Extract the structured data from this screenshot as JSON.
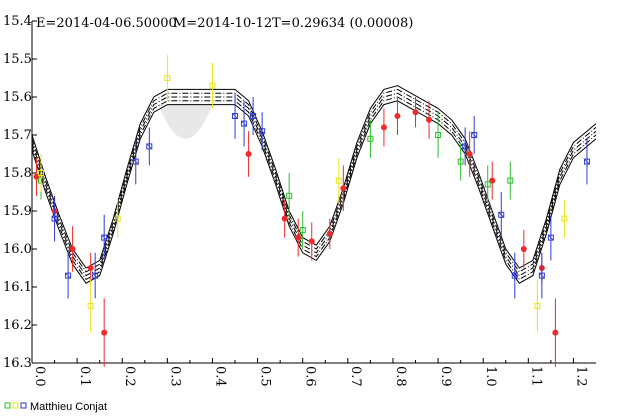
{
  "header": {
    "epoch": "E=2014-04-06.50000",
    "max": "M=2014-10-12",
    "period": "T=0.29634 (0.00008)"
  },
  "legend": {
    "observer": "Matthieu Conjat"
  },
  "colors": {
    "red": "#ee2a2a",
    "blue": "#2e3ad6",
    "green": "#2ebd2e",
    "yellow": "#e6e61a",
    "curve": "#000000"
  },
  "chart_data": {
    "type": "scatter",
    "title": "",
    "xlabel": "",
    "ylabel": "",
    "xlim": [
      0.0,
      1.25
    ],
    "ylim": [
      16.3,
      15.4
    ],
    "y_inverted": true,
    "x_ticks": [
      "0.0",
      "0.1",
      "0.2",
      "0.3",
      "0.4",
      "0.5",
      "0.6",
      "0.7",
      "0.8",
      "0.9",
      "1.0",
      "1.1",
      "1.2"
    ],
    "y_ticks": [
      "15.4",
      "15.5",
      "15.6",
      "15.7",
      "15.8",
      "15.9",
      "16.0",
      "16.1",
      "16.2",
      "16.3"
    ],
    "fit_curve": {
      "x": [
        0.0,
        0.03,
        0.06,
        0.09,
        0.12,
        0.15,
        0.18,
        0.21,
        0.24,
        0.27,
        0.3,
        0.33,
        0.36,
        0.39,
        0.42,
        0.45,
        0.48,
        0.51,
        0.54,
        0.57,
        0.6,
        0.63,
        0.66,
        0.69,
        0.72,
        0.75,
        0.78,
        0.81,
        0.84,
        0.87,
        0.9,
        0.93,
        0.96,
        0.99,
        1.02,
        1.05,
        1.08,
        1.11,
        1.14,
        1.17,
        1.2,
        1.23,
        1.25
      ],
      "mag": [
        15.72,
        15.83,
        15.93,
        16.02,
        16.07,
        16.05,
        15.94,
        15.81,
        15.69,
        15.62,
        15.6,
        15.6,
        15.6,
        15.6,
        15.6,
        15.6,
        15.63,
        15.71,
        15.81,
        15.92,
        15.99,
        16.01,
        15.96,
        15.86,
        15.74,
        15.65,
        15.6,
        15.59,
        15.61,
        15.63,
        15.65,
        15.68,
        15.73,
        15.82,
        15.92,
        16.02,
        16.07,
        16.05,
        15.94,
        15.81,
        15.74,
        15.71,
        15.69
      ],
      "band_offsets": [
        -0.02,
        -0.01,
        0.0,
        0.01,
        0.02
      ],
      "band_styles": [
        "solid",
        "dashdot",
        "dashdot",
        "dashdot",
        "solid"
      ]
    },
    "series": [
      {
        "name": "Matthieu Conjat",
        "marker": "circle",
        "color": "red",
        "points": [
          {
            "x": 0.01,
            "y": 15.81,
            "err": 0.05
          },
          {
            "x": 0.05,
            "y": 15.9,
            "err": 0.04
          },
          {
            "x": 0.09,
            "y": 16.0,
            "err": 0.06
          },
          {
            "x": 0.13,
            "y": 16.05,
            "err": 0.04
          },
          {
            "x": 0.16,
            "y": 16.22,
            "err": 0.09
          },
          {
            "x": 0.48,
            "y": 15.75,
            "err": 0.06
          },
          {
            "x": 0.56,
            "y": 15.92,
            "err": 0.05
          },
          {
            "x": 0.59,
            "y": 15.97,
            "err": 0.05
          },
          {
            "x": 0.62,
            "y": 15.98,
            "err": 0.05
          },
          {
            "x": 0.66,
            "y": 15.96,
            "err": 0.04
          },
          {
            "x": 0.69,
            "y": 15.84,
            "err": 0.06
          },
          {
            "x": 0.78,
            "y": 15.68,
            "err": 0.05
          },
          {
            "x": 0.81,
            "y": 15.65,
            "err": 0.05
          },
          {
            "x": 0.85,
            "y": 15.64,
            "err": 0.04
          },
          {
            "x": 0.88,
            "y": 15.66,
            "err": 0.05
          },
          {
            "x": 0.97,
            "y": 15.75,
            "err": 0.06
          },
          {
            "x": 1.02,
            "y": 15.82,
            "err": 0.05
          },
          {
            "x": 1.09,
            "y": 16.0,
            "err": 0.05
          },
          {
            "x": 1.13,
            "y": 16.05,
            "err": 0.04
          },
          {
            "x": 1.16,
            "y": 16.22,
            "err": 0.09
          }
        ]
      },
      {
        "name": "",
        "marker": "square-x",
        "color": "blue",
        "points": [
          {
            "x": 0.05,
            "y": 15.92,
            "err": 0.06
          },
          {
            "x": 0.08,
            "y": 16.07,
            "err": 0.06
          },
          {
            "x": 0.14,
            "y": 16.07,
            "err": 0.06
          },
          {
            "x": 0.16,
            "y": 15.97,
            "err": 0.06
          },
          {
            "x": 0.23,
            "y": 15.77,
            "err": 0.06
          },
          {
            "x": 0.26,
            "y": 15.73,
            "err": 0.05
          },
          {
            "x": 0.45,
            "y": 15.65,
            "err": 0.06
          },
          {
            "x": 0.47,
            "y": 15.67,
            "err": 0.06
          },
          {
            "x": 0.49,
            "y": 15.65,
            "err": 0.05
          },
          {
            "x": 0.51,
            "y": 15.69,
            "err": 0.05
          },
          {
            "x": 0.96,
            "y": 15.73,
            "err": 0.05
          },
          {
            "x": 0.98,
            "y": 15.7,
            "err": 0.05
          },
          {
            "x": 1.04,
            "y": 15.91,
            "err": 0.06
          },
          {
            "x": 1.07,
            "y": 16.07,
            "err": 0.06
          },
          {
            "x": 1.13,
            "y": 16.07,
            "err": 0.06
          },
          {
            "x": 1.15,
            "y": 15.97,
            "err": 0.06
          },
          {
            "x": 1.23,
            "y": 15.77,
            "err": 0.06
          }
        ]
      },
      {
        "name": "",
        "marker": "square",
        "color": "green",
        "points": [
          {
            "x": 0.02,
            "y": 15.82,
            "err": 0.05
          },
          {
            "x": 0.57,
            "y": 15.86,
            "err": 0.06
          },
          {
            "x": 0.6,
            "y": 15.95,
            "err": 0.05
          },
          {
            "x": 0.75,
            "y": 15.71,
            "err": 0.05
          },
          {
            "x": 0.9,
            "y": 15.7,
            "err": 0.06
          },
          {
            "x": 0.95,
            "y": 15.77,
            "err": 0.05
          },
          {
            "x": 1.06,
            "y": 15.82,
            "err": 0.05
          },
          {
            "x": 1.01,
            "y": 15.83,
            "err": 0.05
          }
        ]
      },
      {
        "name": "",
        "marker": "square",
        "color": "yellow",
        "points": [
          {
            "x": 0.02,
            "y": 15.8,
            "err": 0.05
          },
          {
            "x": 0.13,
            "y": 16.15,
            "err": 0.07
          },
          {
            "x": 0.19,
            "y": 15.92,
            "err": 0.05
          },
          {
            "x": 0.3,
            "y": 15.55,
            "err": 0.06
          },
          {
            "x": 0.4,
            "y": 15.57,
            "err": 0.06
          },
          {
            "x": 0.68,
            "y": 15.82,
            "err": 0.06
          },
          {
            "x": 1.12,
            "y": 16.15,
            "err": 0.07
          },
          {
            "x": 1.18,
            "y": 15.92,
            "err": 0.05
          }
        ]
      }
    ]
  }
}
